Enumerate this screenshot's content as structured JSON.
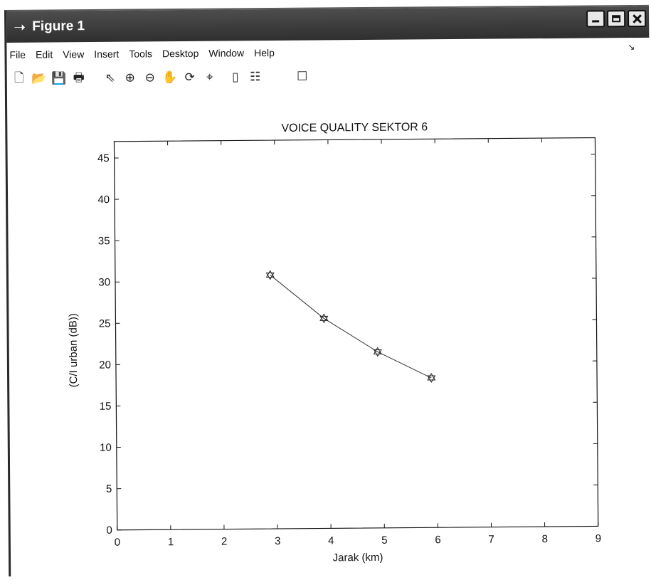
{
  "window": {
    "title": "Figure 1",
    "title_icon": "figure-icon"
  },
  "menu": [
    "File",
    "Edit",
    "View",
    "Insert",
    "Tools",
    "Desktop",
    "Window",
    "Help"
  ],
  "toolbar": [
    {
      "name": "new-figure-icon",
      "glyph": "🗋"
    },
    {
      "name": "open-file-icon",
      "glyph": "📂"
    },
    {
      "name": "save-figure-icon",
      "glyph": "💾"
    },
    {
      "name": "print-figure-icon",
      "glyph": "🖶"
    },
    {
      "name": "edit-plot-arrow-icon",
      "glyph": "⇖"
    },
    {
      "name": "zoom-in-icon",
      "glyph": "⊕"
    },
    {
      "name": "zoom-out-icon",
      "glyph": "⊖"
    },
    {
      "name": "pan-hand-icon",
      "glyph": "✋"
    },
    {
      "name": "rotate-3d-icon",
      "glyph": "⟳"
    },
    {
      "name": "data-cursor-icon",
      "glyph": "⌖"
    },
    {
      "name": "insert-colorbar-icon",
      "glyph": "▯"
    },
    {
      "name": "insert-legend-icon",
      "glyph": "☷"
    },
    {
      "name": "show-plot-tools-icon",
      "glyph": "☐"
    }
  ],
  "chart_data": {
    "type": "line",
    "title": "VOICE QUALITY SEKTOR 6",
    "xlabel": "Jarak (km)",
    "ylabel": "(C/I urban (dB))",
    "xlim": [
      0,
      9
    ],
    "ylim": [
      0,
      47
    ],
    "xticks": [
      "0",
      "1",
      "2",
      "3",
      "4",
      "5",
      "6",
      "7",
      "8",
      "9"
    ],
    "yticks": [
      "0",
      "5",
      "10",
      "15",
      "20",
      "25",
      "30",
      "35",
      "40",
      "45"
    ],
    "marker": "hexagram",
    "grid": false,
    "series": [
      {
        "x": [
          2.9,
          3.9,
          4.9,
          5.9
        ],
        "y": [
          30.7,
          25.4,
          21.3,
          18.1
        ]
      }
    ]
  }
}
